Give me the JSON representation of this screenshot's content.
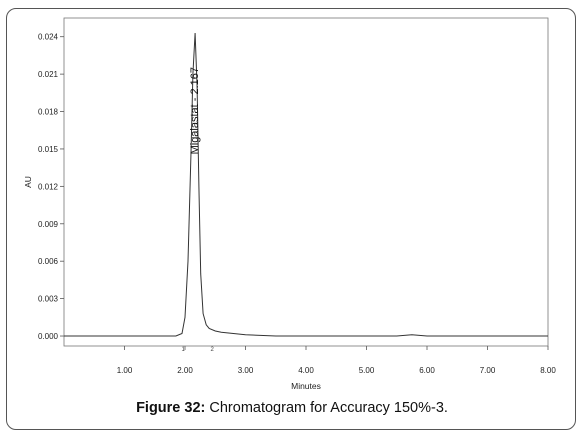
{
  "caption": {
    "figure_label": "Figure 32:",
    "text": "Chromatogram for Accuracy 150%-3."
  },
  "chart_data": {
    "type": "line",
    "xlabel": "Minutes",
    "ylabel": "AU",
    "xlim": [
      0,
      8
    ],
    "ylim": [
      -0.0008,
      0.0255
    ],
    "x_ticks": [
      1.0,
      2.0,
      3.0,
      4.0,
      5.0,
      6.0,
      7.0,
      8.0
    ],
    "x_tick_labels": [
      "1.00",
      "2.00",
      "3.00",
      "4.00",
      "5.00",
      "6.00",
      "7.00",
      "8.00"
    ],
    "y_ticks": [
      0.0,
      0.003,
      0.006,
      0.009,
      0.012,
      0.015,
      0.018,
      0.021,
      0.024
    ],
    "y_tick_labels": [
      "0.000",
      "0.003",
      "0.006",
      "0.009",
      "0.012",
      "0.015",
      "0.018",
      "0.021",
      "0.024"
    ],
    "grid": false,
    "line_color": "#333333",
    "series": [
      {
        "x": [
          0.0,
          0.5,
          1.0,
          1.5,
          1.85,
          1.95,
          2.0,
          2.05,
          2.1,
          2.13,
          2.167,
          2.2,
          2.23,
          2.26,
          2.3,
          2.35,
          2.4,
          2.5,
          2.6,
          2.8,
          3.0,
          3.5,
          4.0,
          4.5,
          5.0,
          5.5,
          5.75,
          6.0,
          6.5,
          7.0,
          7.5,
          8.0
        ],
        "y": [
          0.0,
          0.0,
          0.0,
          0.0,
          0.0,
          0.0002,
          0.0015,
          0.006,
          0.015,
          0.021,
          0.0243,
          0.02,
          0.012,
          0.005,
          0.0018,
          0.0009,
          0.0006,
          0.0004,
          0.0003,
          0.0002,
          0.0001,
          0.0,
          0.0,
          0.0,
          0.0,
          0.0,
          0.0001,
          0.0,
          0.0,
          0.0,
          0.0,
          0.0
        ]
      }
    ],
    "annotations": [
      {
        "text": "Migalastat - 2.167",
        "x": 2.167,
        "y": 0.0243
      }
    ],
    "integration_marks": [
      {
        "text": "1",
        "x": 1.97
      },
      {
        "text": "2",
        "x": 2.45
      }
    ]
  }
}
